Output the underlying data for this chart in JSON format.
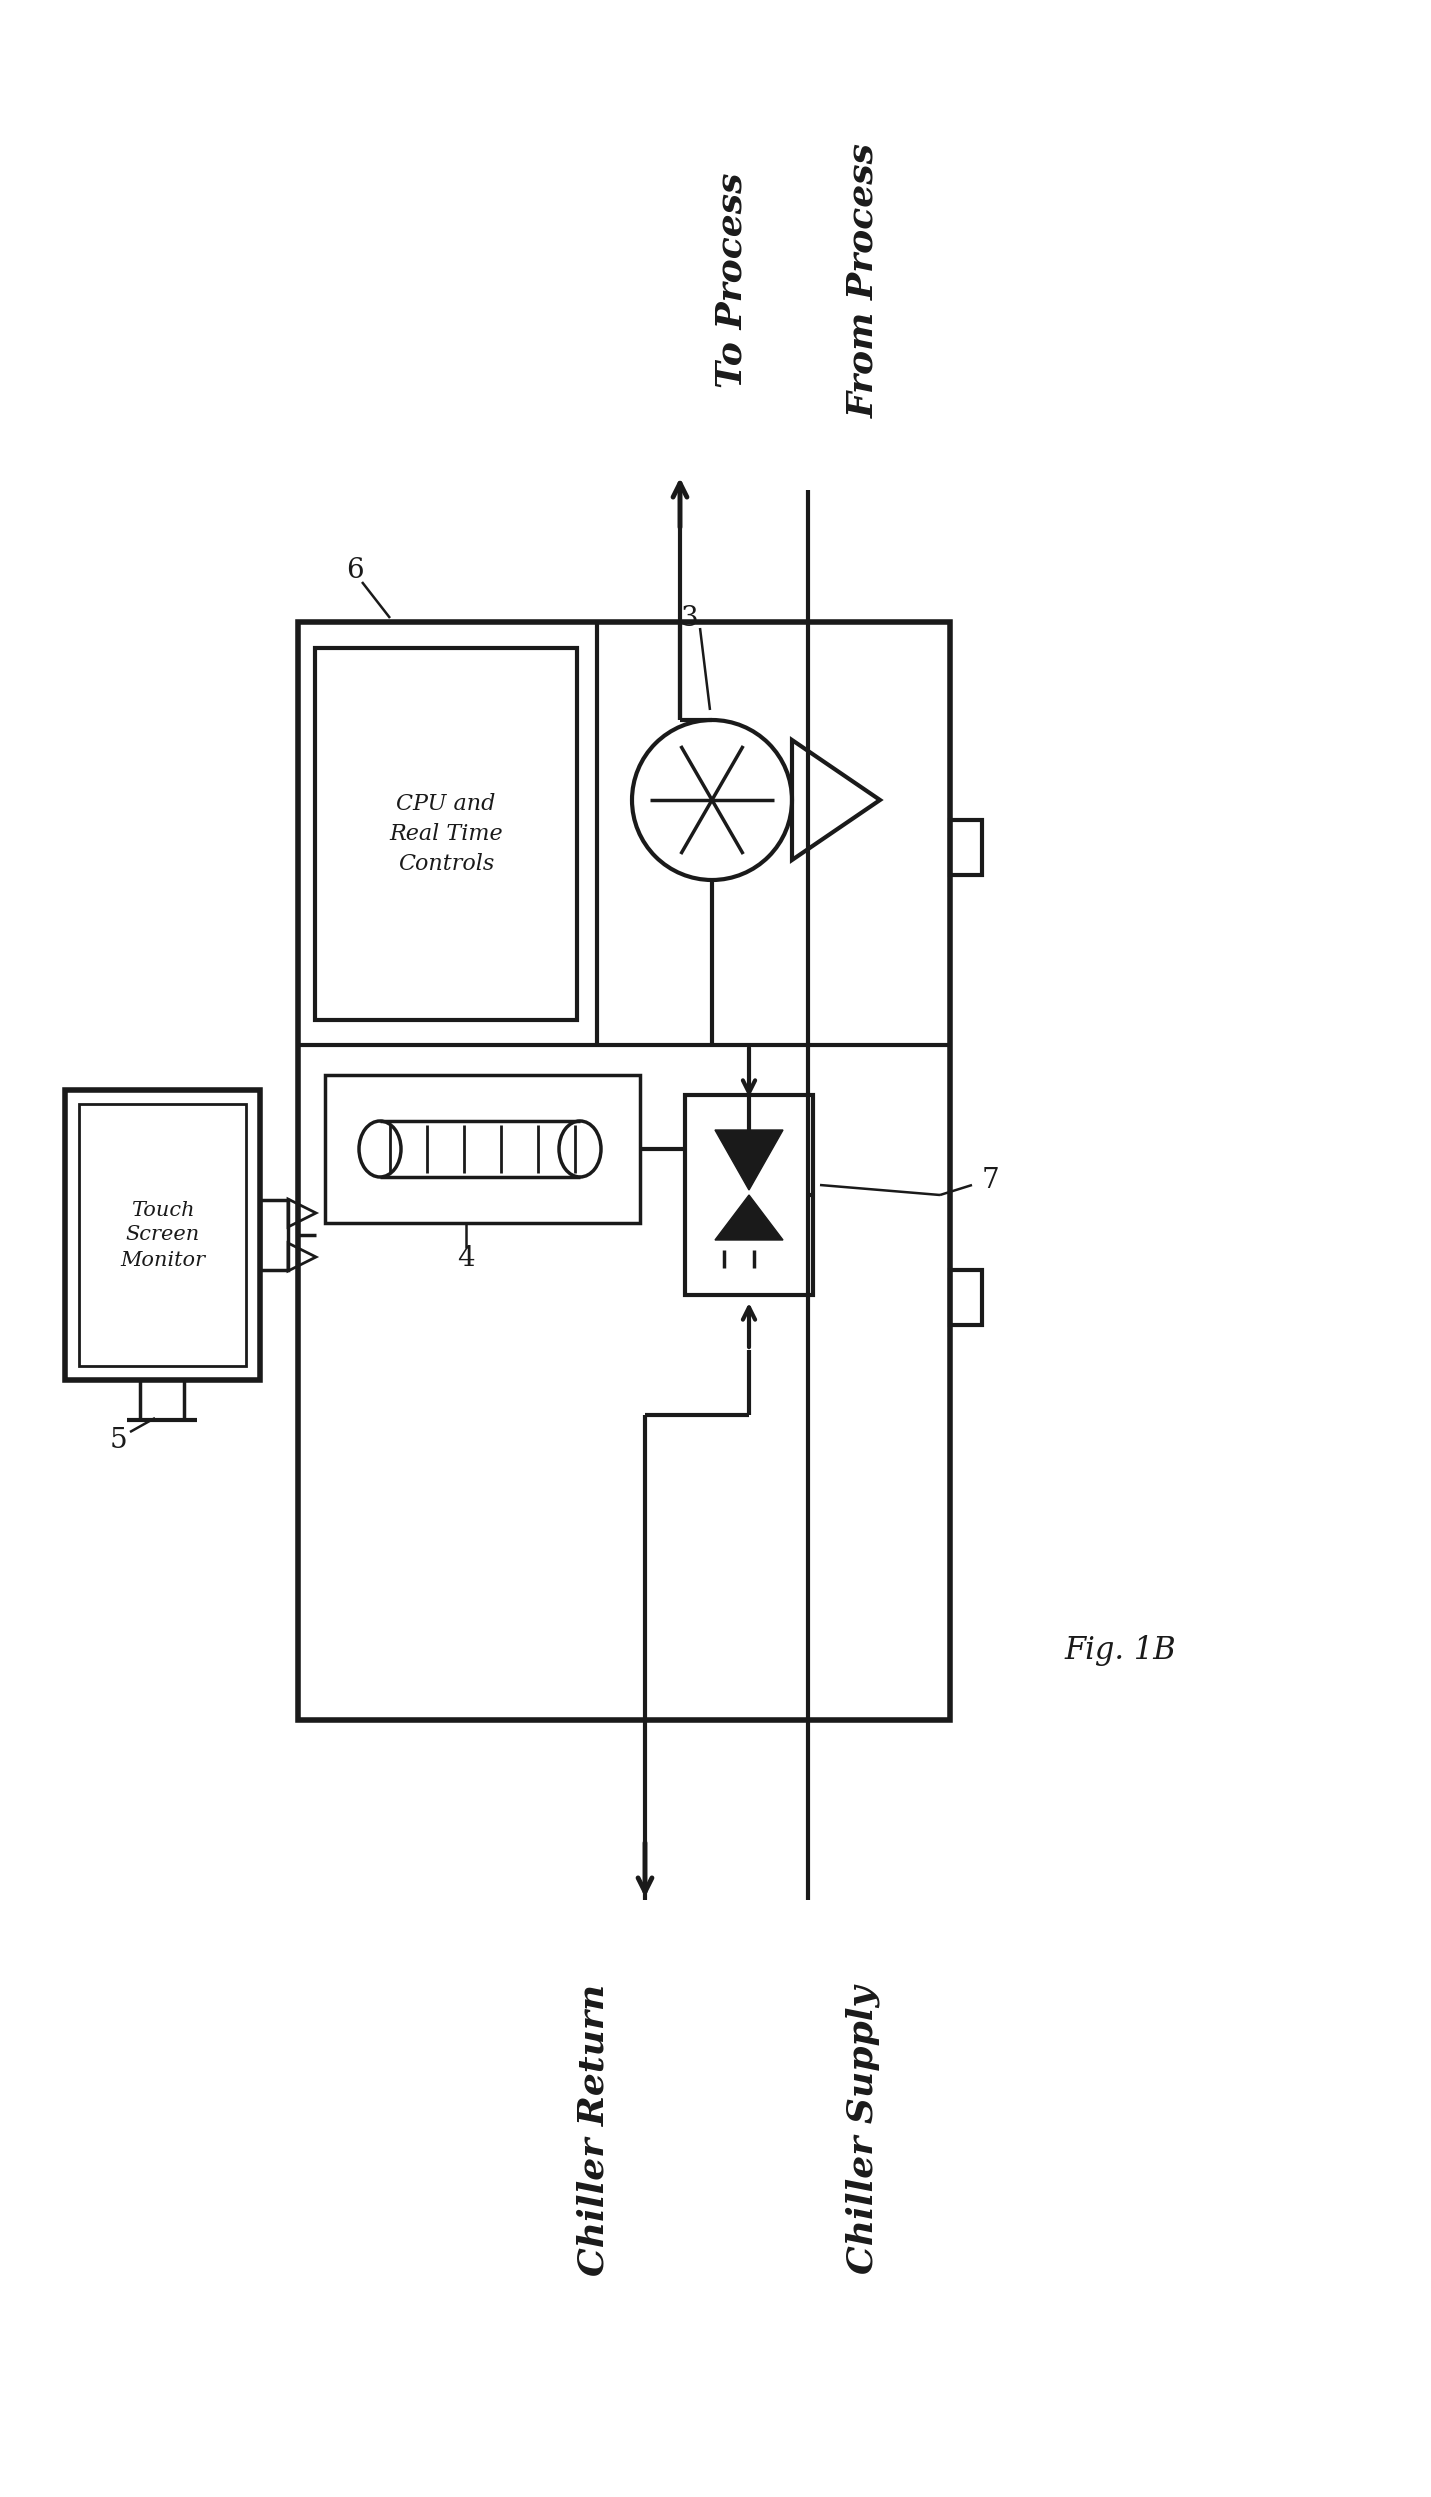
{
  "bg_color": "#ffffff",
  "line_color": "#1a1a1a",
  "fig_label": "Fig. 1B",
  "labels": {
    "to_process": "To Process",
    "from_process": "From Process",
    "chiller_return": "Chiller Return",
    "chiller_supply": "Chiller Supply",
    "cpu": "CPU and\nReal Time\nControls",
    "touch_screen": "Touch\nScreen\nMonitor",
    "ref6": "6",
    "ref3": "3",
    "ref4": "4",
    "ref5": "5",
    "ref7": "7"
  }
}
